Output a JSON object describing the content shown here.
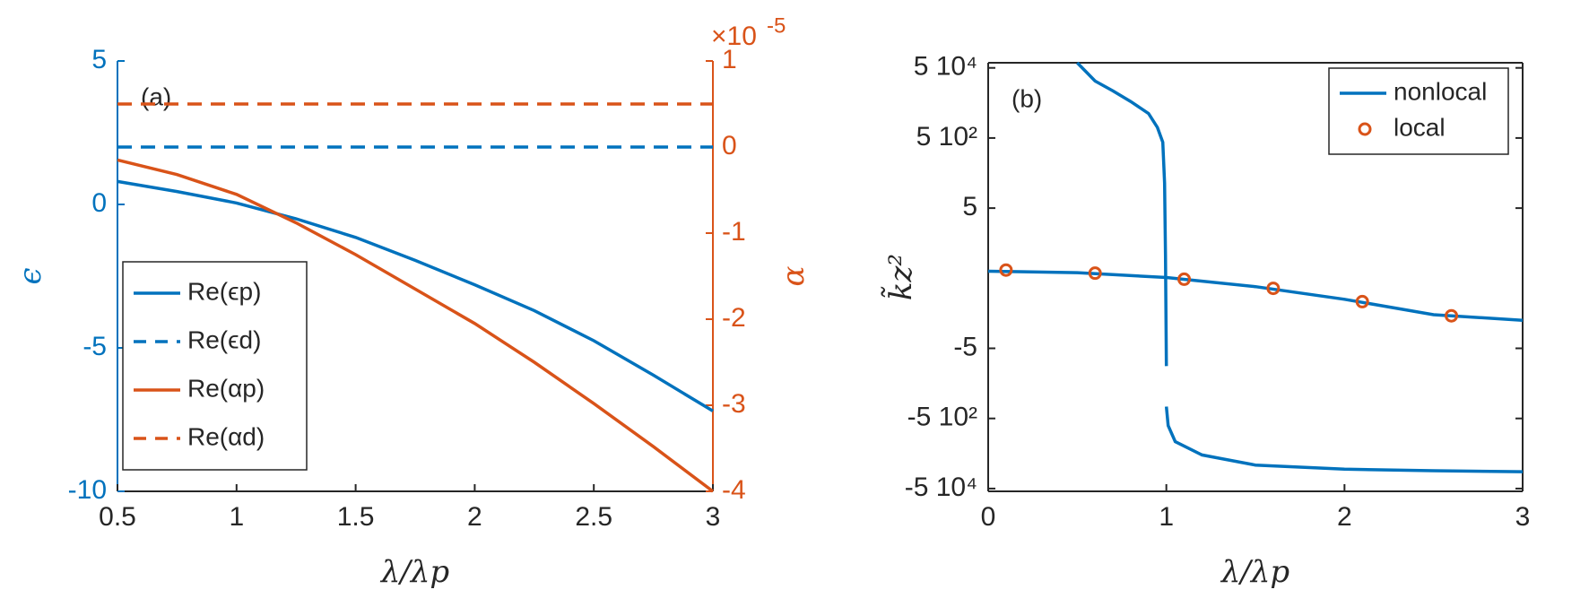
{
  "chart_data": [
    {
      "type": "line",
      "annotation": "(a)",
      "x_label": "λ/λp",
      "y_label": "ϵ",
      "y2_label": "α",
      "y2_multiplier": "×10",
      "y2_exponent": "-5",
      "x": [
        0.5,
        0.75,
        1,
        1.25,
        1.5,
        1.75,
        2,
        2.25,
        2.5,
        2.75,
        3
      ],
      "xlim": [
        0.5,
        3
      ],
      "xticks": [
        0.5,
        1,
        1.5,
        2,
        2.5,
        3
      ],
      "ylim": [
        -10,
        5
      ],
      "yticks": [
        5,
        0,
        -5,
        -10
      ],
      "y2lim": [
        -4,
        1
      ],
      "y2ticks": [
        1,
        0,
        -1,
        -2,
        -3,
        -4
      ],
      "y_color": "#0072bd",
      "y2_color": "#d95319",
      "legend": "southwest",
      "series": [
        {
          "name": "Re(ϵp)",
          "color": "#0072bd",
          "dash": false,
          "values": [
            0.8,
            0.45,
            0.05,
            -0.5,
            -1.15,
            -1.95,
            -2.8,
            -3.7,
            -4.75,
            -5.95,
            -7.2
          ]
        },
        {
          "name": "Re(ϵd)",
          "color": "#0072bd",
          "dash": true,
          "values": [
            2,
            2,
            2,
            2,
            2,
            2,
            2,
            2,
            2,
            2,
            2
          ]
        },
        {
          "name": "Re(αp)",
          "color": "#d95319",
          "dash": false,
          "axis": "y2",
          "values": [
            -0.15,
            -0.32,
            -0.55,
            -0.88,
            -1.25,
            -1.65,
            -2.05,
            -2.5,
            -2.98,
            -3.48,
            -4
          ]
        },
        {
          "name": "Re(αd)",
          "color": "#d95319",
          "dash": true,
          "axis": "y2",
          "values": [
            0.5,
            0.5,
            0.5,
            0.5,
            0.5,
            0.5,
            0.5,
            0.5,
            0.5,
            0.5,
            0.5
          ]
        }
      ]
    },
    {
      "type": "line",
      "annotation": "(b)",
      "x_label": "λ/λp",
      "y_label": "k̃z²",
      "xlim": [
        0,
        3
      ],
      "xticks": [
        0,
        1,
        2,
        3
      ],
      "yscale": "symlog",
      "linthresh": 5,
      "ylim": [
        -60000,
        70000
      ],
      "yticks": [
        {
          "value": 50000,
          "label": "5 10⁴"
        },
        {
          "value": 500,
          "label": "5 10²"
        },
        5,
        -5,
        {
          "value": -500,
          "label": "-5 10²"
        },
        {
          "value": -50000,
          "label": "-5 10⁴"
        }
      ],
      "box": true,
      "legend": "northeast",
      "series": [
        {
          "name": "nonlocal",
          "color": "#0072bd",
          "marker": false,
          "x": [
            0.5,
            0.6,
            0.7,
            0.8,
            0.9,
            0.95,
            0.98,
            0.99,
            0.995,
            1.0,
            null,
            0,
            0.5,
            1.0,
            1.5,
            2.0,
            2.5,
            3,
            null,
            1.0,
            1.01,
            1.05,
            1.2,
            1.5,
            2,
            2.5,
            3
          ],
          "values": [
            70000,
            21000,
            11000,
            5500,
            2500,
            1000,
            380,
            26,
            1.7,
            -16,
            null,
            0.5,
            0.4,
            0.05,
            -0.6,
            -1.5,
            -2.6,
            -3,
            null,
            -230,
            -800,
            -2300,
            -5500,
            -10700,
            -14000,
            -15500,
            -16500
          ]
        },
        {
          "name": "local",
          "color": "#d95319",
          "marker": true,
          "x": [
            0.1,
            0.6,
            1.1,
            1.6,
            2.1,
            2.6
          ],
          "values": [
            0.58,
            0.36,
            -0.07,
            -0.72,
            -1.67,
            -2.68
          ]
        }
      ]
    }
  ]
}
